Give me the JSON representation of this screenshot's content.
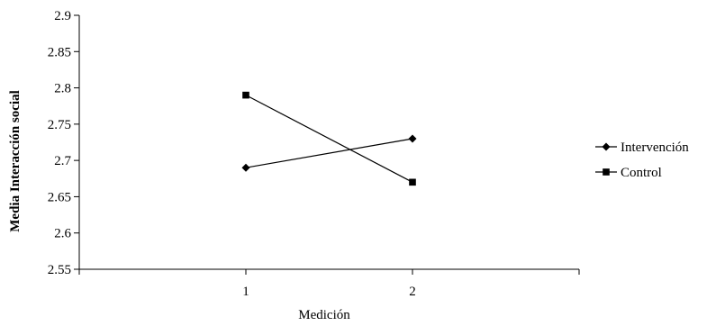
{
  "chart_data": {
    "type": "line",
    "title": "",
    "xlabel": "Medición",
    "ylabel": "Media Interacción social",
    "categories": [
      "1",
      "2"
    ],
    "ylim": [
      2.55,
      2.9
    ],
    "yticks": [
      "2.55",
      "2.6",
      "2.65",
      "2.7",
      "2.75",
      "2.8",
      "2.85",
      "2.9"
    ],
    "grid": false,
    "legend_position": "right",
    "series": [
      {
        "name": "Intervención",
        "values": [
          2.69,
          2.73
        ],
        "marker": "diamond",
        "color": "#000000"
      },
      {
        "name": "Control",
        "values": [
          2.79,
          2.67
        ],
        "marker": "square",
        "color": "#000000"
      }
    ]
  }
}
